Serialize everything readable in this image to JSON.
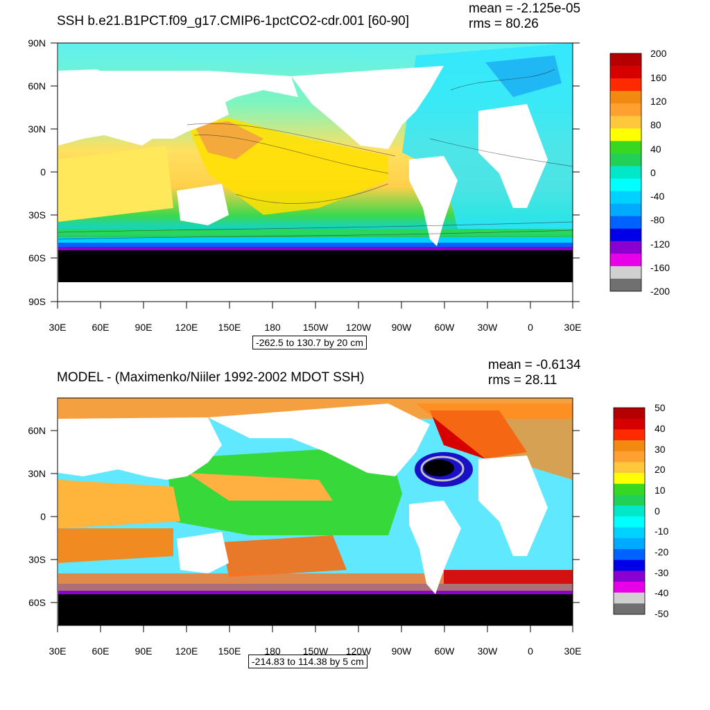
{
  "chart_data": [
    {
      "type": "heatmap",
      "title": "SSH b.e21.B1PCT.f09_g17.CMIP6-1pctCO2-cdr.001 [60-90]",
      "stats": {
        "mean": "mean = -2.125e-05",
        "rms": "rms = 80.26"
      },
      "x_ticks": [
        "30E",
        "60E",
        "90E",
        "120E",
        "150E",
        "180",
        "150W",
        "120W",
        "90W",
        "60W",
        "30W",
        "0",
        "30E"
      ],
      "y_ticks": [
        "90N",
        "60N",
        "30N",
        "0",
        "30S",
        "60S",
        "90S"
      ],
      "xlim": [
        "30E",
        "30E"
      ],
      "ylim": [
        "90S",
        "90N"
      ],
      "range_label": "-262.5 to 130.7 by 20 cm",
      "colorbar": {
        "labels": [
          "200",
          "160",
          "120",
          "80",
          "40",
          "0",
          "-40",
          "-80",
          "-120",
          "-160",
          "-200"
        ],
        "colors": [
          "#b40000",
          "#d70000",
          "#ff2a00",
          "#f28a12",
          "#ffa030",
          "#ffc83c",
          "#ffff00",
          "#38d820",
          "#22d058",
          "#00e8c8",
          "#00ffff",
          "#00d2ff",
          "#00aaff",
          "#0062ff",
          "#0000e8",
          "#8a00d0",
          "#e800e8",
          "#d0d0d0",
          "#707070"
        ]
      }
    },
    {
      "type": "heatmap",
      "title": "MODEL - (Maximenko/Niiler 1992-2002 MDOT SSH)",
      "stats": {
        "mean": "mean = -0.6134",
        "rms": "rms = 28.11"
      },
      "x_ticks": [
        "30E",
        "60E",
        "90E",
        "120E",
        "150E",
        "180",
        "150W",
        "120W",
        "90W",
        "60W",
        "30W",
        "0",
        "30E"
      ],
      "y_ticks": [
        "60N",
        "30N",
        "0",
        "30S",
        "60S"
      ],
      "xlim": [
        "30E",
        "30E"
      ],
      "ylim": [
        "75S",
        "80N"
      ],
      "range_label": "-214.83 to 114.38 by 5 cm",
      "colorbar": {
        "labels": [
          "50",
          "40",
          "30",
          "20",
          "10",
          "0",
          "-10",
          "-20",
          "-30",
          "-40",
          "-50"
        ],
        "colors": [
          "#b40000",
          "#d70000",
          "#ff2a00",
          "#f28a12",
          "#ffa030",
          "#ffc83c",
          "#ffff00",
          "#38d820",
          "#22d058",
          "#00e8c8",
          "#00ffff",
          "#00d2ff",
          "#00aaff",
          "#0062ff",
          "#0000e8",
          "#8a00d0",
          "#e800e8",
          "#d0d0d0",
          "#707070"
        ]
      }
    }
  ]
}
